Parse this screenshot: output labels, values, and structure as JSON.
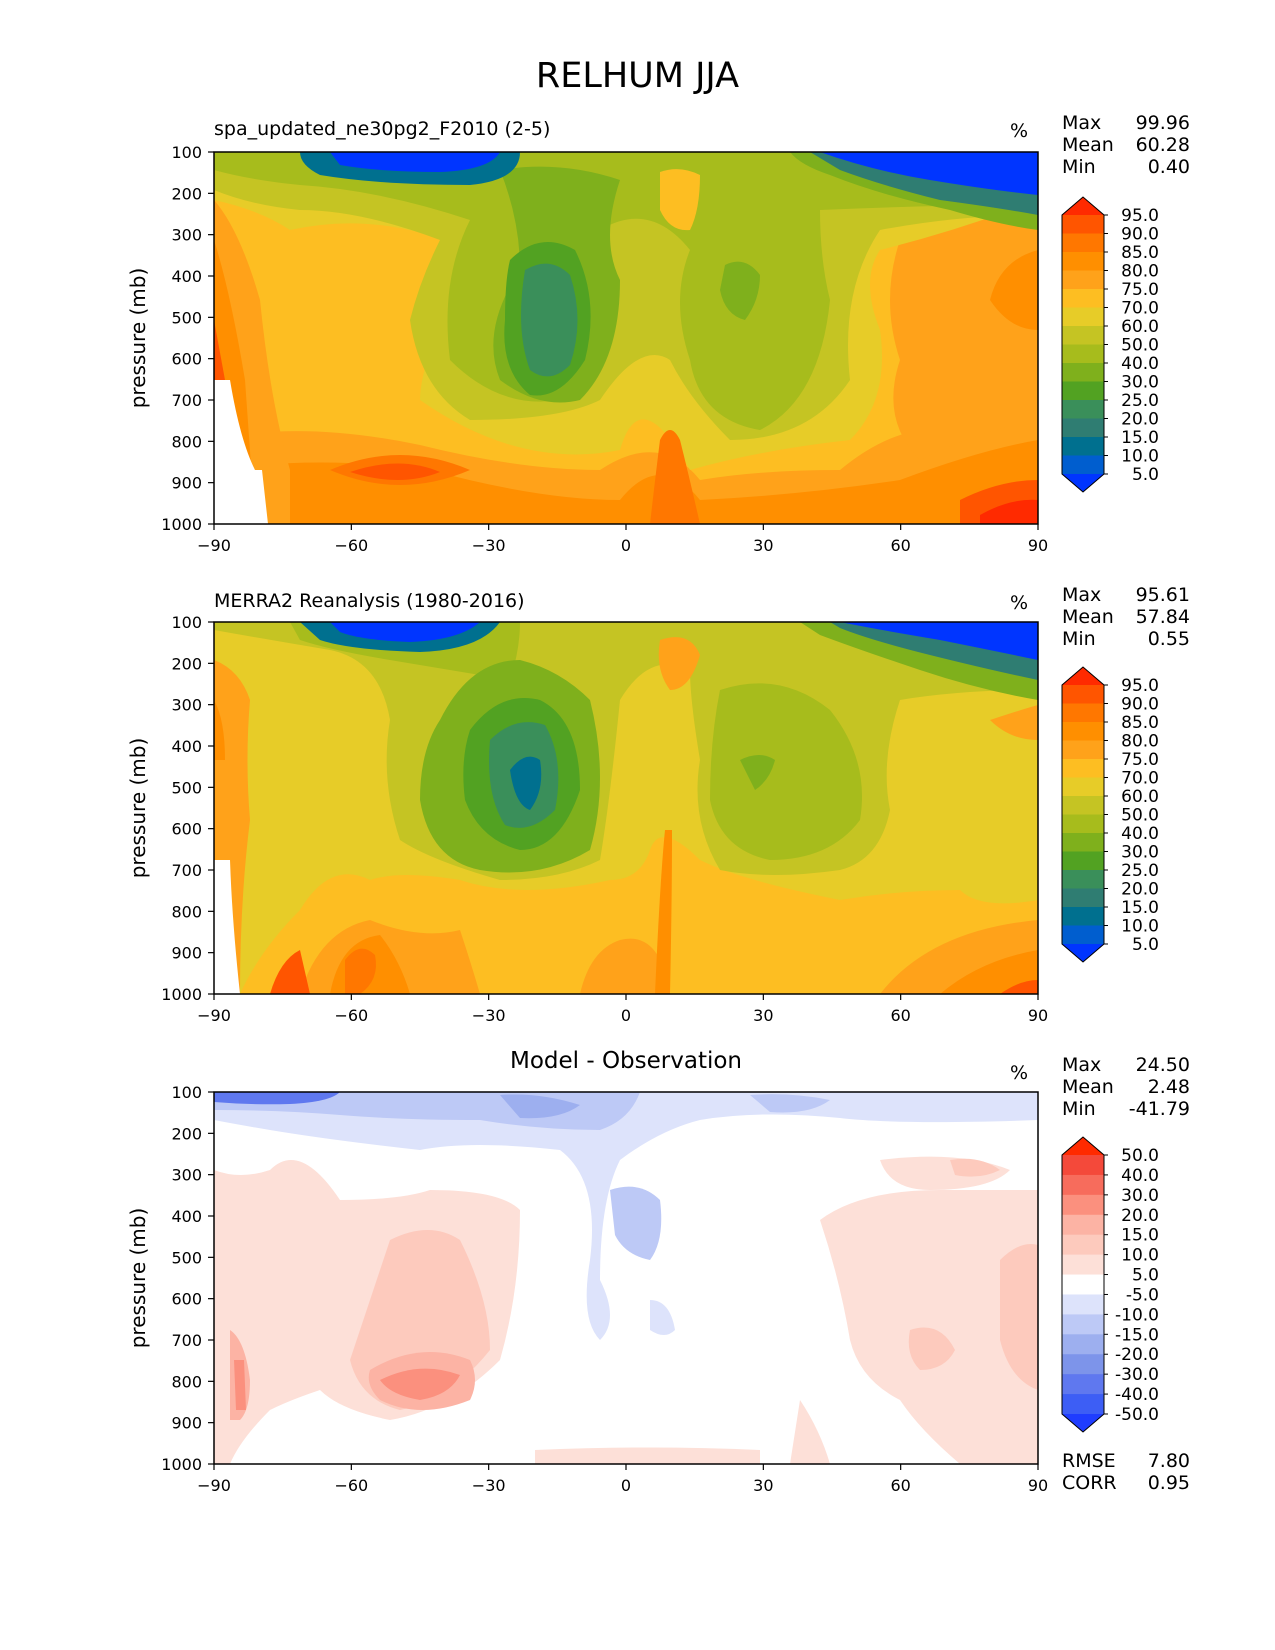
{
  "figure_title": "RELHUM JJA",
  "chart_data": [
    {
      "type": "contour",
      "title": "spa_updated_ne30pg2_F2010 (2-5)",
      "units": "%",
      "xlabel": "",
      "ylabel": "pressure (mb)",
      "xlim": [
        -90,
        90
      ],
      "ylim": [
        1000,
        100
      ],
      "x_ticks": [
        "−90",
        "−60",
        "−30",
        "0",
        "30",
        "60",
        "90"
      ],
      "y_ticks": [
        "100",
        "200",
        "300",
        "400",
        "500",
        "600",
        "700",
        "800",
        "900",
        "1000"
      ],
      "stats": [
        {
          "label": "Max",
          "value": "99.96"
        },
        {
          "label": "Mean",
          "value": "60.28"
        },
        {
          "label": "Min",
          "value": "0.40"
        }
      ],
      "colorbar_levels": [
        "95.0",
        "90.0",
        "85.0",
        "80.0",
        "75.0",
        "70.0",
        "60.0",
        "50.0",
        "40.0",
        "30.0",
        "25.0",
        "20.0",
        "15.0",
        "10.0",
        "5.0"
      ],
      "colorbar_colors": [
        "#ff2a00",
        "#ff5500",
        "#ff7700",
        "#ff8f00",
        "#ffa21a",
        "#fdbe22",
        "#e7cc28",
        "#c5c423",
        "#a7bc1c",
        "#7fb01c",
        "#52a222",
        "#3a8f5a",
        "#2f7d72",
        "#00708f",
        "#005ecf",
        "#0035ff"
      ]
    },
    {
      "type": "contour",
      "title": "MERRA2 Reanalysis (1980-2016)",
      "units": "%",
      "xlabel": "",
      "ylabel": "pressure (mb)",
      "xlim": [
        -90,
        90
      ],
      "ylim": [
        1000,
        100
      ],
      "x_ticks": [
        "−90",
        "−60",
        "−30",
        "0",
        "30",
        "60",
        "90"
      ],
      "y_ticks": [
        "100",
        "200",
        "300",
        "400",
        "500",
        "600",
        "700",
        "800",
        "900",
        "1000"
      ],
      "stats": [
        {
          "label": "Max",
          "value": "95.61"
        },
        {
          "label": "Mean",
          "value": "57.84"
        },
        {
          "label": "Min",
          "value": "0.55"
        }
      ],
      "colorbar_levels": [
        "95.0",
        "90.0",
        "85.0",
        "80.0",
        "75.0",
        "70.0",
        "60.0",
        "50.0",
        "40.0",
        "30.0",
        "25.0",
        "20.0",
        "15.0",
        "10.0",
        "5.0"
      ],
      "colorbar_colors": [
        "#ff2a00",
        "#ff5500",
        "#ff7700",
        "#ff8f00",
        "#ffa21a",
        "#fdbe22",
        "#e7cc28",
        "#c5c423",
        "#a7bc1c",
        "#7fb01c",
        "#52a222",
        "#3a8f5a",
        "#2f7d72",
        "#00708f",
        "#005ecf",
        "#0035ff"
      ]
    },
    {
      "type": "contour",
      "title": "Model - Observation",
      "units": "%",
      "xlabel": "",
      "ylabel": "pressure (mb)",
      "xlim": [
        -90,
        90
      ],
      "ylim": [
        1000,
        100
      ],
      "x_ticks": [
        "−90",
        "−60",
        "−30",
        "0",
        "30",
        "60",
        "90"
      ],
      "y_ticks": [
        "100",
        "200",
        "300",
        "400",
        "500",
        "600",
        "700",
        "800",
        "900",
        "1000"
      ],
      "stats": [
        {
          "label": "Max",
          "value": "24.50"
        },
        {
          "label": "Mean",
          "value": "2.48"
        },
        {
          "label": "Min",
          "value": "-41.79"
        }
      ],
      "extra_stats": [
        {
          "label": "RMSE",
          "value": "7.80"
        },
        {
          "label": "CORR",
          "value": "0.95"
        }
      ],
      "colorbar_levels": [
        "50.0",
        "40.0",
        "30.0",
        "20.0",
        "15.0",
        "10.0",
        "5.0",
        "-5.0",
        "-10.0",
        "-15.0",
        "-20.0",
        "-30.0",
        "-40.0",
        "-50.0"
      ],
      "colorbar_colors": [
        "#ff2a00",
        "#f4493a",
        "#f76c5c",
        "#fb907e",
        "#fcb3a4",
        "#fdcabd",
        "#fde0d8",
        "#ffffff",
        "#dde3fb",
        "#bdc9f6",
        "#9dafef",
        "#7d94ea",
        "#5f78ef",
        "#3d5ef5",
        "#1f3dff"
      ]
    }
  ]
}
